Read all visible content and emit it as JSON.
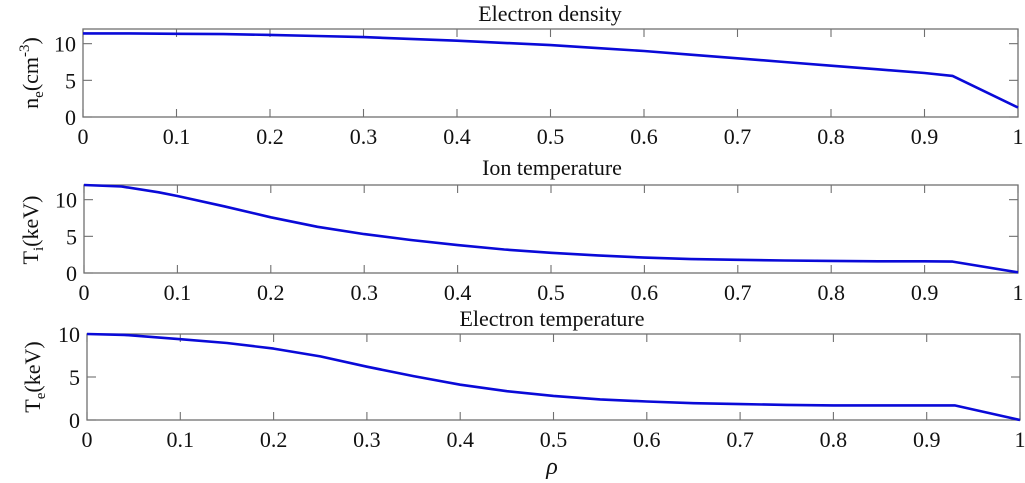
{
  "figure": {
    "xlabel": "ρ",
    "line_color": "#0a0ad8",
    "axis_color": "#707070"
  },
  "chart_data": [
    {
      "type": "line",
      "title": "Electron density",
      "xlabel": "",
      "ylabel": "n_e(cm^-3)",
      "ylabel_main": "n",
      "ylabel_sub": "e",
      "ylabel_unit": "(cm",
      "ylabel_sup": "-3",
      "ylabel_close": ")",
      "xlim": [
        0,
        1
      ],
      "ylim": [
        0,
        12
      ],
      "xticks": [
        0,
        0.1,
        0.2,
        0.3,
        0.4,
        0.5,
        0.6,
        0.7,
        0.8,
        0.9,
        1
      ],
      "xtick_labels": [
        "0",
        "0.1",
        "0.2",
        "0.3",
        "0.4",
        "0.5",
        "0.6",
        "0.7",
        "0.8",
        "0.9",
        "1"
      ],
      "yticks": [
        0,
        5,
        10
      ],
      "ytick_labels": [
        "0",
        "5",
        "10"
      ],
      "grid": false,
      "series": [
        {
          "name": "n_e",
          "x": [
            0,
            0.05,
            0.1,
            0.15,
            0.2,
            0.25,
            0.3,
            0.35,
            0.4,
            0.45,
            0.5,
            0.55,
            0.6,
            0.65,
            0.7,
            0.75,
            0.8,
            0.85,
            0.9,
            0.93,
            1.0
          ],
          "values": [
            11.4,
            11.4,
            11.35,
            11.3,
            11.2,
            11.05,
            10.9,
            10.65,
            10.4,
            10.1,
            9.8,
            9.4,
            9.0,
            8.5,
            8.0,
            7.5,
            7.0,
            6.5,
            6.0,
            5.6,
            1.3
          ]
        }
      ]
    },
    {
      "type": "line",
      "title": "Ion temperature",
      "xlabel": "",
      "ylabel": "T_i(keV)",
      "ylabel_main": "T",
      "ylabel_sub": "i",
      "ylabel_unit": "(keV)",
      "ylabel_sup": "",
      "ylabel_close": "",
      "xlim": [
        0,
        1
      ],
      "ylim": [
        0,
        12
      ],
      "xticks": [
        0,
        0.1,
        0.2,
        0.3,
        0.4,
        0.5,
        0.6,
        0.7,
        0.8,
        0.9,
        1
      ],
      "xtick_labels": [
        "0",
        "0.1",
        "0.2",
        "0.3",
        "0.4",
        "0.5",
        "0.6",
        "0.7",
        "0.8",
        "0.9",
        "1"
      ],
      "yticks": [
        0,
        5,
        10
      ],
      "ytick_labels": [
        "0",
        "5",
        "10"
      ],
      "grid": false,
      "series": [
        {
          "name": "T_i",
          "x": [
            0,
            0.04,
            0.08,
            0.1,
            0.15,
            0.2,
            0.25,
            0.3,
            0.35,
            0.4,
            0.45,
            0.5,
            0.55,
            0.6,
            0.65,
            0.7,
            0.75,
            0.8,
            0.85,
            0.9,
            0.93,
            1.0
          ],
          "values": [
            12.0,
            11.8,
            11.0,
            10.5,
            9.1,
            7.6,
            6.3,
            5.3,
            4.5,
            3.8,
            3.2,
            2.75,
            2.4,
            2.1,
            1.9,
            1.8,
            1.7,
            1.65,
            1.6,
            1.6,
            1.55,
            0.1
          ]
        }
      ]
    },
    {
      "type": "line",
      "title": "Electron temperature",
      "xlabel": "ρ",
      "ylabel": "T_e(keV)",
      "ylabel_main": "T",
      "ylabel_sub": "e",
      "ylabel_unit": "(keV)",
      "ylabel_sup": "",
      "ylabel_close": "",
      "xlim": [
        0,
        1
      ],
      "ylim": [
        0,
        10
      ],
      "xticks": [
        0,
        0.1,
        0.2,
        0.3,
        0.4,
        0.5,
        0.6,
        0.7,
        0.8,
        0.9,
        1
      ],
      "xtick_labels": [
        "0",
        "0.1",
        "0.2",
        "0.3",
        "0.4",
        "0.5",
        "0.6",
        "0.7",
        "0.8",
        "0.9",
        "1"
      ],
      "yticks": [
        0,
        5,
        10
      ],
      "ytick_labels": [
        "0",
        "5",
        "10"
      ],
      "grid": false,
      "series": [
        {
          "name": "T_e",
          "x": [
            0,
            0.04,
            0.1,
            0.15,
            0.2,
            0.25,
            0.3,
            0.35,
            0.4,
            0.45,
            0.5,
            0.55,
            0.6,
            0.65,
            0.7,
            0.75,
            0.8,
            0.85,
            0.9,
            0.93,
            1.0
          ],
          "values": [
            10.0,
            9.9,
            9.4,
            8.95,
            8.3,
            7.4,
            6.2,
            5.1,
            4.1,
            3.35,
            2.8,
            2.4,
            2.15,
            1.95,
            1.85,
            1.75,
            1.7,
            1.7,
            1.7,
            1.7,
            0.0
          ]
        }
      ]
    }
  ]
}
